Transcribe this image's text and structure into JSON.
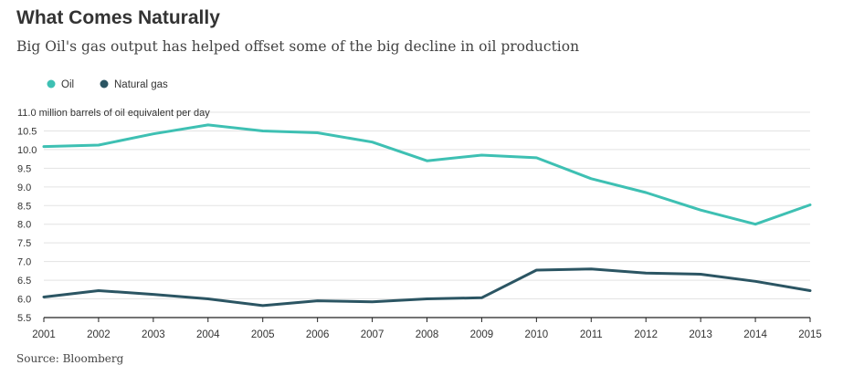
{
  "title": "What Comes Naturally",
  "subtitle": "Big Oil's gas output has helped offset some of the big decline in oil production",
  "source": "Source: Bloomberg",
  "colors": {
    "oil": "#3ec0b3",
    "gas": "#2b5563",
    "grid": "#e3e3e3",
    "axis": "#222222",
    "text": "#333333"
  },
  "chart_data": {
    "type": "line",
    "title": "What Comes Naturally",
    "ylabel": "million barrels of oil equivalent per day",
    "xlabel": "",
    "x": [
      2001,
      2002,
      2003,
      2004,
      2005,
      2006,
      2007,
      2008,
      2009,
      2010,
      2011,
      2012,
      2013,
      2014,
      2015
    ],
    "x_tick_labels": [
      "2001",
      "2002",
      "2003",
      "2004",
      "2005",
      "2006",
      "2007",
      "2008",
      "2009",
      "2010",
      "2011",
      "2012",
      "2013",
      "2014",
      "2015"
    ],
    "ylim": [
      5.5,
      11.0
    ],
    "y_ticks": [
      5.5,
      6.0,
      6.5,
      7.0,
      7.5,
      8.0,
      8.5,
      9.0,
      9.5,
      10.0,
      10.5,
      11.0
    ],
    "y_tick_labels": [
      "5.5",
      "6.0",
      "6.5",
      "7.0",
      "7.5",
      "8.0",
      "8.5",
      "9.0",
      "9.5",
      "10.0",
      "10.5",
      "11.0"
    ],
    "top_tick_label": "11.0 million barrels of oil equivalent per day",
    "legend_position": "top-left",
    "series": [
      {
        "name": "Oil",
        "color_key": "oil",
        "values": [
          10.08,
          10.12,
          10.42,
          10.66,
          10.5,
          10.45,
          10.2,
          9.7,
          9.85,
          9.78,
          9.22,
          8.85,
          8.38,
          8.0,
          8.52
        ]
      },
      {
        "name": "Natural gas",
        "color_key": "gas",
        "values": [
          6.05,
          6.22,
          6.12,
          6.0,
          5.82,
          5.95,
          5.92,
          6.0,
          6.03,
          6.77,
          6.8,
          6.69,
          6.66,
          6.47,
          6.22
        ]
      }
    ]
  }
}
